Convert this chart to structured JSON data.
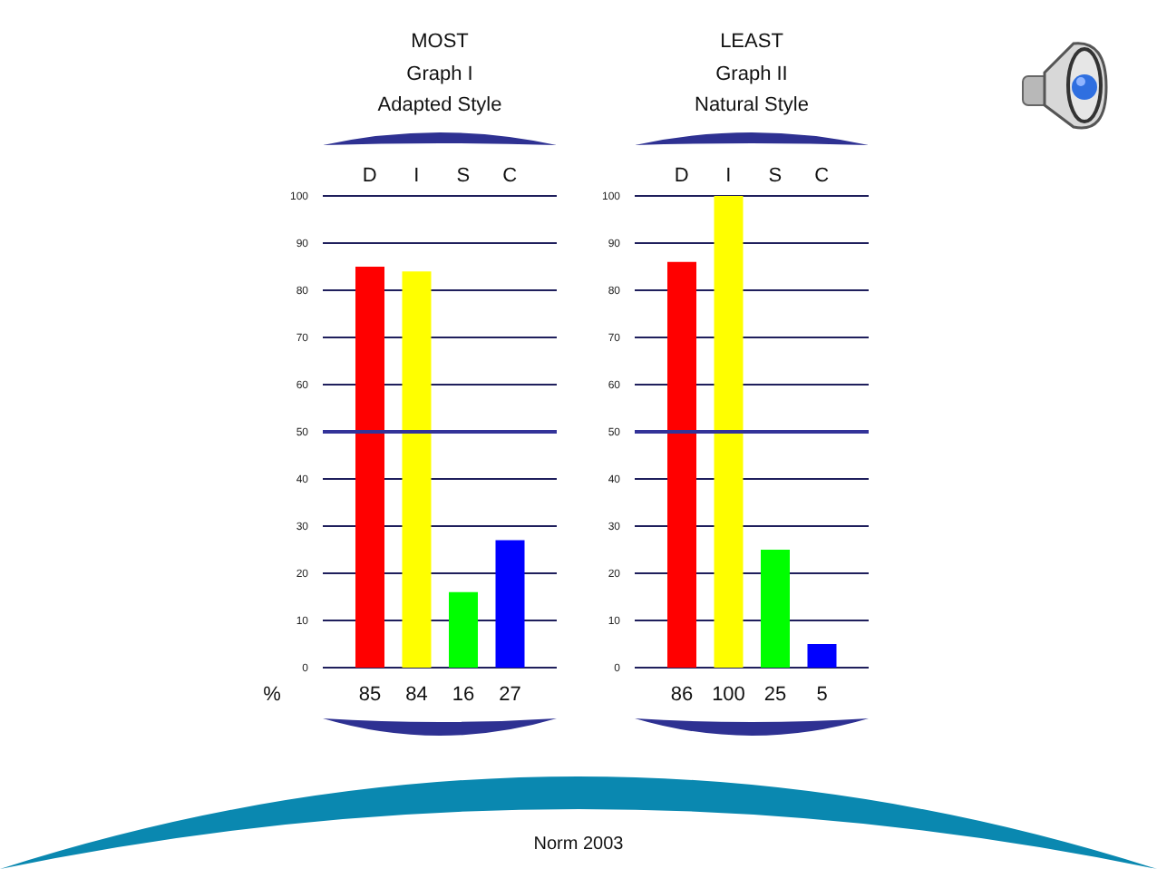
{
  "chart_data": [
    {
      "type": "bar",
      "title": "MOST",
      "subtitle": "Graph I\nAdapted Style",
      "ylabel": "%",
      "categories": [
        "D",
        "I",
        "S",
        "C"
      ],
      "values": [
        85,
        84,
        16,
        27
      ],
      "colors": [
        "#ff0000",
        "#ffff00",
        "#00ff00",
        "#0000ff"
      ],
      "ylim": [
        0,
        100
      ],
      "yticks": [
        0,
        10,
        20,
        30,
        40,
        50,
        60,
        70,
        80,
        90,
        100
      ],
      "grid": "y",
      "data_labels": true,
      "ref_lines": [
        {
          "axis": "y",
          "value": 50,
          "color": "#333399"
        }
      ]
    },
    {
      "type": "bar",
      "title": "LEAST",
      "subtitle": "Graph II\nNatural Style",
      "categories": [
        "D",
        "I",
        "S",
        "C"
      ],
      "values": [
        86,
        100,
        25,
        5
      ],
      "colors": [
        "#ff0000",
        "#ffff00",
        "#00ff00",
        "#0000ff"
      ],
      "ylim": [
        0,
        100
      ],
      "yticks": [
        0,
        10,
        20,
        30,
        40,
        50,
        60,
        70,
        80,
        90,
        100
      ],
      "grid": "y",
      "data_labels": true,
      "ref_lines": [
        {
          "axis": "y",
          "value": 50,
          "color": "#333399"
        }
      ],
      "annotations": [
        "Norm 2003"
      ]
    }
  ]
}
